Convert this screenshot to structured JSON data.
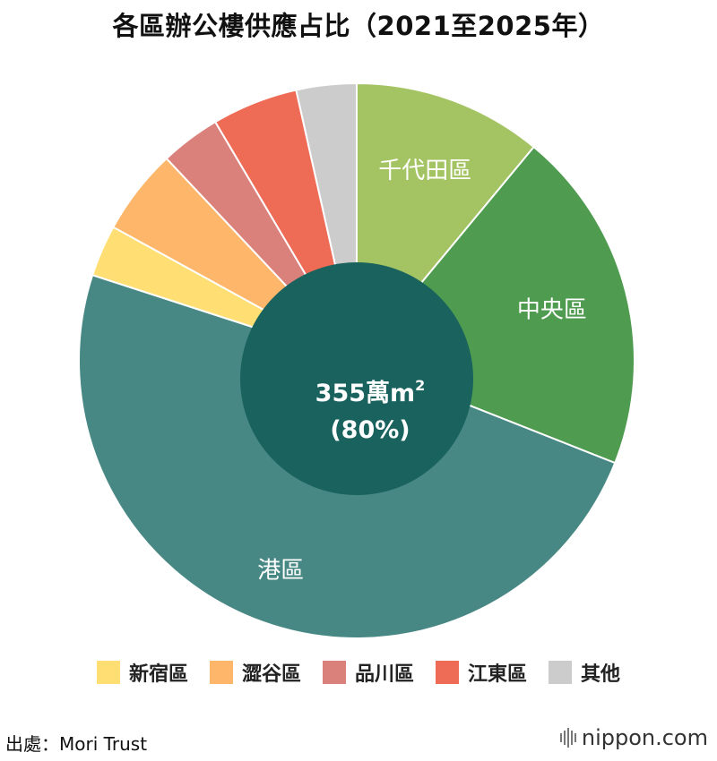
{
  "title": "各區辦公樓供應占比（2021至2025年）",
  "chart_data": {
    "type": "pie",
    "title": "各區辦公樓供應占比（2021至2025年）",
    "slices": [
      {
        "label": "千代田區",
        "value": 11,
        "color": "#a4c463",
        "show_label": true
      },
      {
        "label": "中央區",
        "value": 20,
        "color": "#4f9b50",
        "show_label": true
      },
      {
        "label": "港區",
        "value": 49,
        "color": "#488884",
        "show_label": true
      },
      {
        "label": "新宿區",
        "value": 3,
        "color": "#ffdf73",
        "show_label": false
      },
      {
        "label": "澀谷區",
        "value": 5,
        "color": "#fdb66a",
        "show_label": false
      },
      {
        "label": "品川區",
        "value": 3.5,
        "color": "#da817b",
        "show_label": false
      },
      {
        "label": "江東區",
        "value": 5,
        "color": "#ee6b55",
        "show_label": false
      },
      {
        "label": "其他",
        "value": 3.5,
        "color": "#cccccc",
        "show_label": false
      }
    ],
    "center": {
      "line1": "355萬m",
      "sup": "2",
      "line2": "(80%)",
      "color": "#19625e"
    }
  },
  "legend": [
    {
      "label": "新宿區",
      "color": "#ffdf73"
    },
    {
      "label": "澀谷區",
      "color": "#fdb66a"
    },
    {
      "label": "品川區",
      "color": "#da817b"
    },
    {
      "label": "江東區",
      "color": "#ee6b55"
    },
    {
      "label": "其他",
      "color": "#cccccc"
    }
  ],
  "source": "出處：Mori Trust",
  "logo": {
    "name": "nippon",
    "tld": ".com"
  }
}
